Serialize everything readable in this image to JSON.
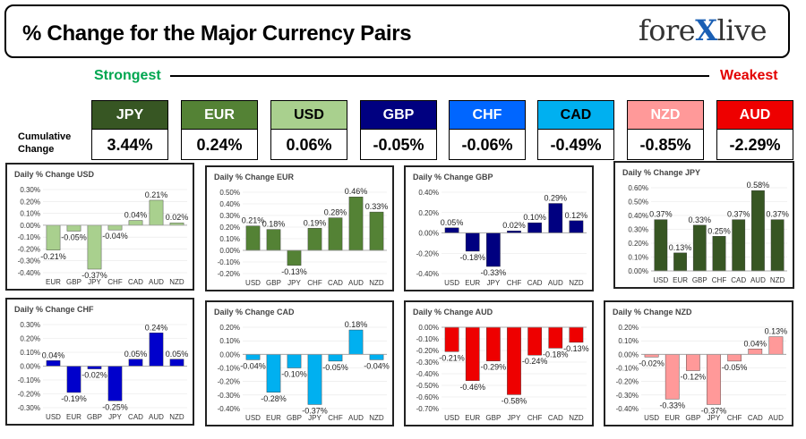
{
  "header": {
    "title": "% Change for the Major Currency Pairs",
    "logo_left": "fore",
    "logo_x": "X",
    "logo_right": "live"
  },
  "ranking": {
    "strongest_label": "Strongest",
    "weakest_label": "Weakest",
    "cumulative_label": "Cumulative Change",
    "currencies": [
      {
        "code": "JPY",
        "value": "3.44%",
        "color": "#375623",
        "text": "#ffffff"
      },
      {
        "code": "EUR",
        "value": "0.24%",
        "color": "#548235",
        "text": "#ffffff"
      },
      {
        "code": "USD",
        "value": "0.06%",
        "color": "#a9d08e",
        "text": "#000000"
      },
      {
        "code": "GBP",
        "value": "-0.05%",
        "color": "#000080",
        "text": "#ffffff"
      },
      {
        "code": "CHF",
        "value": "-0.06%",
        "color": "#0066ff",
        "text": "#ffffff"
      },
      {
        "code": "CAD",
        "value": "-0.49%",
        "color": "#00b0f0",
        "text": "#000000"
      },
      {
        "code": "NZD",
        "value": "-0.85%",
        "color": "#ff9999",
        "text": "#ffffff"
      },
      {
        "code": "AUD",
        "value": "-2.29%",
        "color": "#ee0000",
        "text": "#ffffff"
      }
    ]
  },
  "chart_data": [
    {
      "type": "bar",
      "title": "Daily % Change USD",
      "color": "#a9d08e",
      "categories": [
        "EUR",
        "GBP",
        "JPY",
        "CHF",
        "CAD",
        "AUD",
        "NZD"
      ],
      "values": [
        -0.21,
        -0.05,
        -0.37,
        -0.04,
        0.04,
        0.21,
        0.02
      ],
      "labels": [
        "-0.21%",
        "-0.05%",
        "-0.37%",
        "-0.04%",
        "0.04%",
        "0.21%",
        "0.02%"
      ],
      "ylim": [
        -0.4,
        0.3
      ],
      "ticks": [
        -0.4,
        -0.3,
        -0.2,
        -0.1,
        0,
        0.1,
        0.2,
        0.3
      ],
      "tick_labels": [
        "-0.40%",
        "-0.30%",
        "-0.20%",
        "-0.10%",
        "0.00%",
        "0.10%",
        "0.20%",
        "0.30%"
      ]
    },
    {
      "type": "bar",
      "title": "Daily % Change EUR",
      "color": "#548235",
      "categories": [
        "USD",
        "GBP",
        "JPY",
        "CHF",
        "CAD",
        "AUD",
        "NZD"
      ],
      "values": [
        0.21,
        0.18,
        -0.13,
        0.19,
        0.28,
        0.46,
        0.33
      ],
      "labels": [
        "0.21%",
        "0.18%",
        "-0.13%",
        "0.19%",
        "0.28%",
        "0.46%",
        "0.33%"
      ],
      "ylim": [
        -0.2,
        0.5
      ],
      "ticks": [
        -0.2,
        -0.1,
        0,
        0.1,
        0.2,
        0.3,
        0.4,
        0.5
      ],
      "tick_labels": [
        "-0.20%",
        "-0.10%",
        "0.00%",
        "0.10%",
        "0.20%",
        "0.30%",
        "0.40%",
        "0.50%"
      ]
    },
    {
      "type": "bar",
      "title": "Daily % Change GBP",
      "color": "#000080",
      "categories": [
        "USD",
        "EUR",
        "JPY",
        "CHF",
        "CAD",
        "AUD",
        "NZD"
      ],
      "values": [
        0.05,
        -0.18,
        -0.33,
        0.02,
        0.1,
        0.29,
        0.12
      ],
      "labels": [
        "0.05%",
        "-0.18%",
        "-0.33%",
        "0.02%",
        "0.10%",
        "0.29%",
        "0.12%"
      ],
      "ylim": [
        -0.4,
        0.4
      ],
      "ticks": [
        -0.4,
        -0.2,
        0,
        0.2,
        0.4
      ],
      "tick_labels": [
        "-0.40%",
        "-0.20%",
        "0.00%",
        "0.20%",
        "0.40%"
      ]
    },
    {
      "type": "bar",
      "title": "Daily % Change JPY",
      "color": "#375623",
      "categories": [
        "USD",
        "EUR",
        "GBP",
        "CHF",
        "CAD",
        "AUD",
        "NZD"
      ],
      "values": [
        0.37,
        0.13,
        0.33,
        0.25,
        0.37,
        0.58,
        0.37
      ],
      "labels": [
        "0.37%",
        "0.13%",
        "0.33%",
        "0.25%",
        "0.37%",
        "0.58%",
        "0.37%"
      ],
      "ylim": [
        0,
        0.6
      ],
      "ticks": [
        0,
        0.1,
        0.2,
        0.3,
        0.4,
        0.5,
        0.6
      ],
      "tick_labels": [
        "0.00%",
        "0.10%",
        "0.20%",
        "0.30%",
        "0.40%",
        "0.50%",
        "0.60%"
      ]
    },
    {
      "type": "bar",
      "title": "Daily % Change CHF",
      "color": "#0000cc",
      "categories": [
        "USD",
        "EUR",
        "GBP",
        "JPY",
        "CAD",
        "AUD",
        "NZD"
      ],
      "values": [
        0.04,
        -0.19,
        -0.02,
        -0.25,
        0.05,
        0.24,
        0.05
      ],
      "labels": [
        "0.04%",
        "-0.19%",
        "-0.02%",
        "-0.25%",
        "0.05%",
        "0.24%",
        "0.05%"
      ],
      "ylim": [
        -0.3,
        0.3
      ],
      "ticks": [
        -0.3,
        -0.2,
        -0.1,
        0,
        0.1,
        0.2,
        0.3
      ],
      "tick_labels": [
        "-0.30%",
        "-0.20%",
        "-0.10%",
        "0.00%",
        "0.10%",
        "0.20%",
        "0.30%"
      ]
    },
    {
      "type": "bar",
      "title": "Daily % Change CAD",
      "color": "#00b0f0",
      "categories": [
        "USD",
        "EUR",
        "GBP",
        "JPY",
        "CHF",
        "AUD",
        "NZD"
      ],
      "values": [
        -0.04,
        -0.28,
        -0.1,
        -0.37,
        -0.05,
        0.18,
        -0.04
      ],
      "labels": [
        "-0.04%",
        "-0.28%",
        "-0.10%",
        "-0.37%",
        "-0.05%",
        "0.18%",
        "-0.04%"
      ],
      "ylim": [
        -0.4,
        0.2
      ],
      "ticks": [
        -0.4,
        -0.3,
        -0.2,
        -0.1,
        0,
        0.1,
        0.2
      ],
      "tick_labels": [
        "-0.40%",
        "-0.30%",
        "-0.20%",
        "-0.10%",
        "0.00%",
        "0.10%",
        "0.20%"
      ]
    },
    {
      "type": "bar",
      "title": "Daily % Change AUD",
      "color": "#ee0000",
      "categories": [
        "USD",
        "EUR",
        "GBP",
        "JPY",
        "CHF",
        "CAD",
        "NZD"
      ],
      "values": [
        -0.21,
        -0.46,
        -0.29,
        -0.58,
        -0.24,
        -0.18,
        -0.13
      ],
      "labels": [
        "-0.21%",
        "-0.46%",
        "-0.29%",
        "-0.58%",
        "-0.24%",
        "-0.18%",
        "-0.13%"
      ],
      "ylim": [
        -0.7,
        0
      ],
      "ticks": [
        -0.7,
        -0.6,
        -0.5,
        -0.4,
        -0.3,
        -0.2,
        -0.1,
        0
      ],
      "tick_labels": [
        "-0.70%",
        "-0.60%",
        "-0.50%",
        "-0.40%",
        "-0.30%",
        "-0.20%",
        "-0.10%",
        "0.00%"
      ]
    },
    {
      "type": "bar",
      "title": "Daily % Change NZD",
      "color": "#ff9999",
      "categories": [
        "USD",
        "EUR",
        "GBP",
        "JPY",
        "CHF",
        "CAD",
        "AUD"
      ],
      "values": [
        -0.02,
        -0.33,
        -0.12,
        -0.37,
        -0.05,
        0.04,
        0.13
      ],
      "labels": [
        "-0.02%",
        "-0.33%",
        "-0.12%",
        "-0.37%",
        "-0.05%",
        "0.04%",
        "0.13%"
      ],
      "ylim": [
        -0.4,
        0.2
      ],
      "ticks": [
        -0.4,
        -0.3,
        -0.2,
        -0.1,
        0,
        0.1,
        0.2
      ],
      "tick_labels": [
        "-0.40%",
        "-0.30%",
        "-0.20%",
        "-0.10%",
        "0.00%",
        "0.10%",
        "0.20%"
      ]
    }
  ]
}
